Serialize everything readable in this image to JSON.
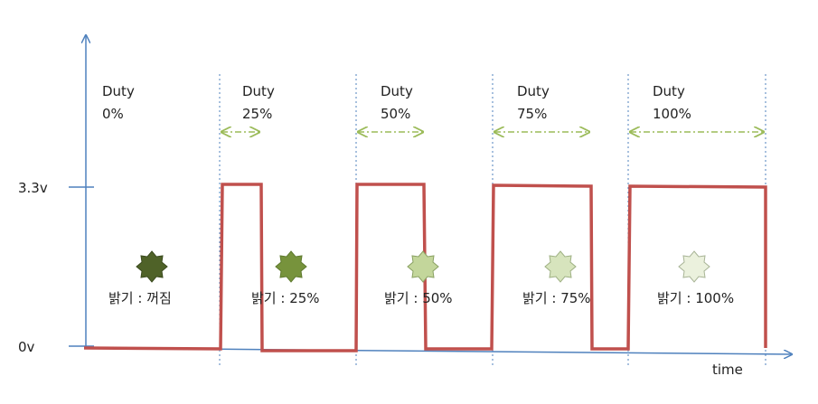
{
  "axis": {
    "y_labels": [
      "3.3v",
      "0v"
    ],
    "x_label": "time"
  },
  "duty_labels": [
    {
      "title": "Duty",
      "value": "0%"
    },
    {
      "title": "Duty",
      "value": "25%"
    },
    {
      "title": "Duty",
      "value": "50%"
    },
    {
      "title": "Duty",
      "value": "75%"
    },
    {
      "title": "Duty",
      "value": "100%"
    }
  ],
  "brightness_labels": [
    "밝기 : 꺼짐",
    "밝기 : 25%",
    "밝기 : 50%",
    "밝기 : 75%",
    "밝기 : 100%"
  ],
  "colors": {
    "axis": "#4f81bd",
    "signal": "#c0504d",
    "period_divider": "#4f81bd",
    "duty_arrow": "#9bbb59",
    "star_fills": [
      "#4f6228",
      "#77933c",
      "#c3d69b",
      "#d7e4bd",
      "#ebf1dd"
    ],
    "star_stroke": "#7f8c6a"
  },
  "icons": [
    "star-0",
    "star-25",
    "star-50",
    "star-75",
    "star-100"
  ]
}
